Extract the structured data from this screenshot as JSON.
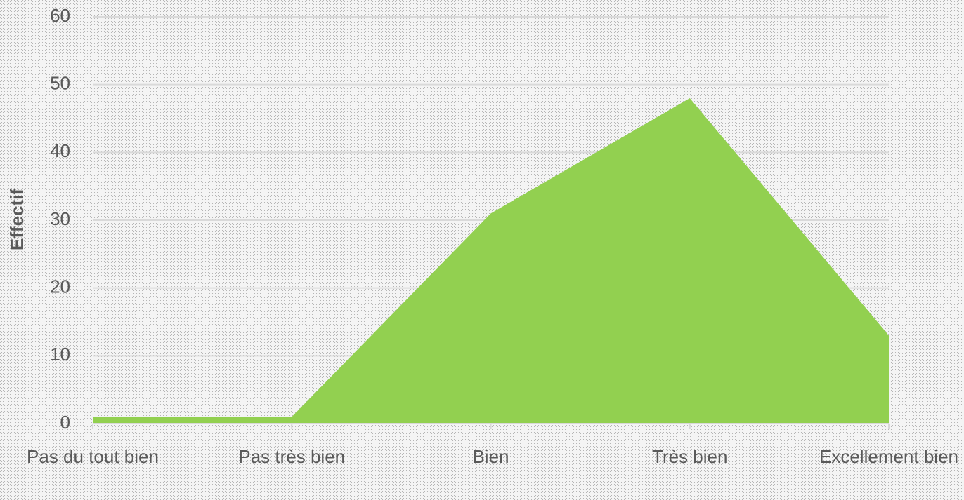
{
  "chart_data": {
    "type": "area",
    "y_label": "Effectif",
    "categories": [
      "Pas du tout bien",
      "Pas très bien",
      "Bien",
      "Très bien",
      "Excellement bien"
    ],
    "values": [
      1,
      1,
      31,
      48,
      13
    ],
    "color": "#92d050",
    "ylim": [
      0,
      60
    ],
    "yticks": [
      0,
      10,
      20,
      30,
      40,
      50,
      60
    ],
    "grid": true
  }
}
